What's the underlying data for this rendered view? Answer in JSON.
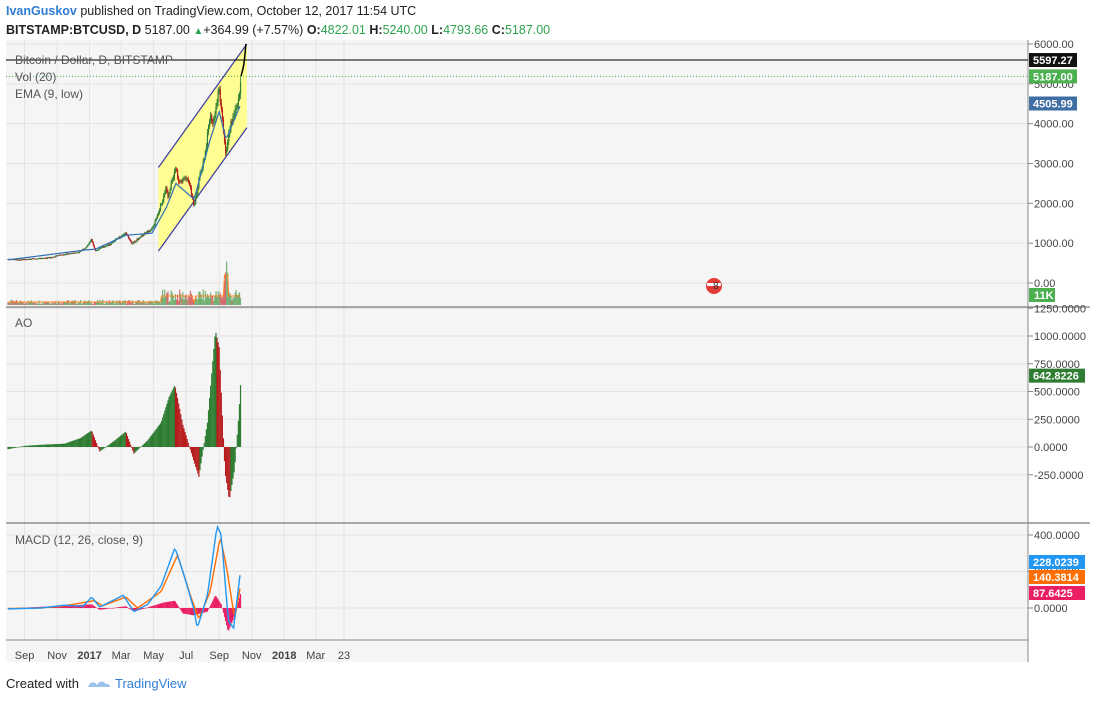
{
  "header": {
    "author": "IvanGuskov",
    "published": "published on TradingView.com, October 12, 2017 11:54 UTC",
    "symbol": "BITSTAMP:BTCUSD, D",
    "price": "5187.00",
    "change": "+364.99 (+7.57%)",
    "o_label": "O:",
    "o_value": "4822.01",
    "h_label": "H:",
    "h_value": "5240.00",
    "l_label": "L:",
    "l_value": "4793.66",
    "c_label": "C:",
    "c_value": "5187.00"
  },
  "footer": {
    "created_with": "Created with",
    "brand": "TradingView"
  },
  "colors": {
    "up": "#2e7d32",
    "down": "#b71c1c",
    "ema": "#4caf50",
    "vol_ma": "#ff7f27",
    "channel_fill": "#ffff80",
    "macd": "#2196f3",
    "signal": "#ff6d00",
    "hist": "#e91e63",
    "tag_last": "#4caf50",
    "tag_ema": "#3f6ea5",
    "tag_ao": "#2e7d32"
  },
  "chart_data": [
    {
      "type": "candlestick",
      "title": "Bitcoin / Dollar, D, BITSTAMP",
      "legend": [
        "Vol (20)",
        "EMA (9, low)"
      ],
      "x_ticks": [
        "Sep",
        "Nov",
        "2017",
        "Mar",
        "May",
        "Jul",
        "Sep",
        "Nov",
        "2018",
        "Mar",
        "23"
      ],
      "y_ticks": [
        "6000.00",
        "5000.00",
        "4000.00",
        "3000.00",
        "2000.00",
        "1000.00",
        "0.00"
      ],
      "ylim": [
        0,
        6000
      ],
      "price_tags": [
        {
          "label": "5597.27",
          "value": 5597.27,
          "color": "#111111"
        },
        {
          "label": "5187.00",
          "value": 5187.0,
          "color": "#4caf50"
        },
        {
          "label": "4505.99",
          "value": 4505.99,
          "color": "#3f6ea5"
        }
      ],
      "volume_tag": "11K",
      "overlay_badge": "8",
      "channel": {
        "upper": [
          [
            "2017-05-10",
            2900
          ],
          [
            "2017-10-23",
            6000
          ]
        ],
        "lower": [
          [
            "2017-05-10",
            800
          ],
          [
            "2017-10-23",
            3900
          ]
        ]
      },
      "close_series": [
        [
          "2016-08-01",
          600
        ],
        [
          "2016-08-20",
          575
        ],
        [
          "2016-09-10",
          605
        ],
        [
          "2016-10-01",
          610
        ],
        [
          "2016-10-20",
          640
        ],
        [
          "2016-11-05",
          700
        ],
        [
          "2016-11-20",
          735
        ],
        [
          "2016-12-10",
          770
        ],
        [
          "2016-12-25",
          890
        ],
        [
          "2017-01-04",
          1100
        ],
        [
          "2017-01-12",
          800
        ],
        [
          "2017-01-25",
          900
        ],
        [
          "2017-02-10",
          990
        ],
        [
          "2017-02-25",
          1150
        ],
        [
          "2017-03-10",
          1250
        ],
        [
          "2017-03-20",
          1000
        ],
        [
          "2017-03-28",
          1050
        ],
        [
          "2017-04-10",
          1200
        ],
        [
          "2017-04-28",
          1350
        ],
        [
          "2017-05-10",
          1750
        ],
        [
          "2017-05-25",
          2400
        ],
        [
          "2017-05-27",
          2100
        ],
        [
          "2017-06-05",
          2600
        ],
        [
          "2017-06-12",
          2950
        ],
        [
          "2017-06-16",
          2500
        ],
        [
          "2017-06-25",
          2600
        ],
        [
          "2017-07-05",
          2600
        ],
        [
          "2017-07-16",
          1900
        ],
        [
          "2017-07-25",
          2600
        ],
        [
          "2017-08-05",
          3200
        ],
        [
          "2017-08-15",
          4200
        ],
        [
          "2017-08-20",
          4000
        ],
        [
          "2017-09-01",
          4850
        ],
        [
          "2017-09-05",
          4300
        ],
        [
          "2017-09-14",
          3200
        ],
        [
          "2017-09-20",
          3850
        ],
        [
          "2017-09-30",
          4300
        ],
        [
          "2017-10-08",
          4600
        ],
        [
          "2017-10-12",
          5187
        ]
      ],
      "ema_series": [
        [
          "2016-08-01",
          580
        ],
        [
          "2016-12-25",
          830
        ],
        [
          "2017-01-12",
          850
        ],
        [
          "2017-03-10",
          1200
        ],
        [
          "2017-04-28",
          1250
        ],
        [
          "2017-05-25",
          1900
        ],
        [
          "2017-06-12",
          2500
        ],
        [
          "2017-07-16",
          2100
        ],
        [
          "2017-08-15",
          3600
        ],
        [
          "2017-09-01",
          4300
        ],
        [
          "2017-09-14",
          3600
        ],
        [
          "2017-10-12",
          4505.99
        ]
      ],
      "prediction": [
        [
          "2017-10-12",
          5187
        ],
        [
          "2017-10-15",
          5400
        ],
        [
          "2017-10-17",
          5300
        ],
        [
          "2017-10-21",
          6000
        ]
      ]
    },
    {
      "type": "bar",
      "title": "AO",
      "y_ticks": [
        "1250.0000",
        "1000.0000",
        "750.0000",
        "500.0000",
        "250.0000",
        "0.0000",
        "-250.0000"
      ],
      "ylim": [
        -550,
        1270
      ],
      "last_value_tag": "642.8226",
      "series": [
        [
          "2016-08-01",
          -20
        ],
        [
          "2016-09-01",
          10
        ],
        [
          "2016-10-01",
          20
        ],
        [
          "2016-11-15",
          30
        ],
        [
          "2016-12-15",
          80
        ],
        [
          "2017-01-05",
          150
        ],
        [
          "2017-01-20",
          -40
        ],
        [
          "2017-02-15",
          50
        ],
        [
          "2017-03-10",
          140
        ],
        [
          "2017-03-25",
          -60
        ],
        [
          "2017-04-20",
          60
        ],
        [
          "2017-05-15",
          220
        ],
        [
          "2017-05-30",
          450
        ],
        [
          "2017-06-10",
          560
        ],
        [
          "2017-06-25",
          200
        ],
        [
          "2017-07-15",
          -120
        ],
        [
          "2017-07-25",
          -270
        ],
        [
          "2017-08-10",
          220
        ],
        [
          "2017-08-25",
          1050
        ],
        [
          "2017-09-01",
          900
        ],
        [
          "2017-09-12",
          -230
        ],
        [
          "2017-09-20",
          -480
        ],
        [
          "2017-09-30",
          -200
        ],
        [
          "2017-10-08",
          300
        ],
        [
          "2017-10-12",
          642.8226
        ]
      ]
    },
    {
      "type": "line",
      "title": "MACD (12, 26, close, 9)",
      "y_ticks": [
        "400.0000",
        "200.0000",
        "0.0000"
      ],
      "ylim": [
        -130,
        400
      ],
      "value_tags": [
        {
          "label": "228.0239",
          "color": "#2196f3"
        },
        {
          "label": "140.3814",
          "color": "#ff6d00"
        },
        {
          "label": "87.6425",
          "color": "#e91e63"
        }
      ],
      "series": [
        {
          "name": "MACD",
          "values": [
            [
              "2016-08-01",
              -5
            ],
            [
              "2016-10-01",
              0
            ],
            [
              "2016-11-15",
              15
            ],
            [
              "2016-12-20",
              10
            ],
            [
              "2017-01-05",
              60
            ],
            [
              "2017-01-20",
              5
            ],
            [
              "2017-03-05",
              70
            ],
            [
              "2017-03-25",
              -20
            ],
            [
              "2017-04-20",
              20
            ],
            [
              "2017-05-15",
              120
            ],
            [
              "2017-06-10",
              330
            ],
            [
              "2017-06-25",
              200
            ],
            [
              "2017-07-15",
              0
            ],
            [
              "2017-07-22",
              -110
            ],
            [
              "2017-08-10",
              70
            ],
            [
              "2017-08-28",
              450
            ],
            [
              "2017-09-05",
              400
            ],
            [
              "2017-09-18",
              -70
            ],
            [
              "2017-09-28",
              -110
            ],
            [
              "2017-10-12",
              228.0239
            ]
          ]
        },
        {
          "name": "Signal",
          "values": [
            [
              "2016-08-01",
              -3
            ],
            [
              "2016-10-01",
              0
            ],
            [
              "2016-11-15",
              12
            ],
            [
              "2017-01-10",
              40
            ],
            [
              "2017-01-25",
              12
            ],
            [
              "2017-03-10",
              60
            ],
            [
              "2017-04-01",
              0
            ],
            [
              "2017-05-15",
              90
            ],
            [
              "2017-06-15",
              290
            ],
            [
              "2017-07-10",
              60
            ],
            [
              "2017-07-25",
              -60
            ],
            [
              "2017-08-15",
              90
            ],
            [
              "2017-09-03",
              390
            ],
            [
              "2017-09-15",
              220
            ],
            [
              "2017-09-30",
              -60
            ],
            [
              "2017-10-12",
              140.3814
            ]
          ]
        },
        {
          "name": "Histogram",
          "values": [
            [
              "2016-08-01",
              -2
            ],
            [
              "2017-01-05",
              20
            ],
            [
              "2017-01-20",
              -10
            ],
            [
              "2017-03-10",
              10
            ],
            [
              "2017-03-25",
              -20
            ],
            [
              "2017-05-20",
              30
            ],
            [
              "2017-06-10",
              40
            ],
            [
              "2017-06-25",
              -30
            ],
            [
              "2017-07-15",
              -40
            ],
            [
              "2017-08-10",
              -20
            ],
            [
              "2017-08-25",
              70
            ],
            [
              "2017-09-05",
              20
            ],
            [
              "2017-09-18",
              -130
            ],
            [
              "2017-09-28",
              -60
            ],
            [
              "2017-10-12",
              87.6425
            ]
          ]
        }
      ]
    }
  ]
}
